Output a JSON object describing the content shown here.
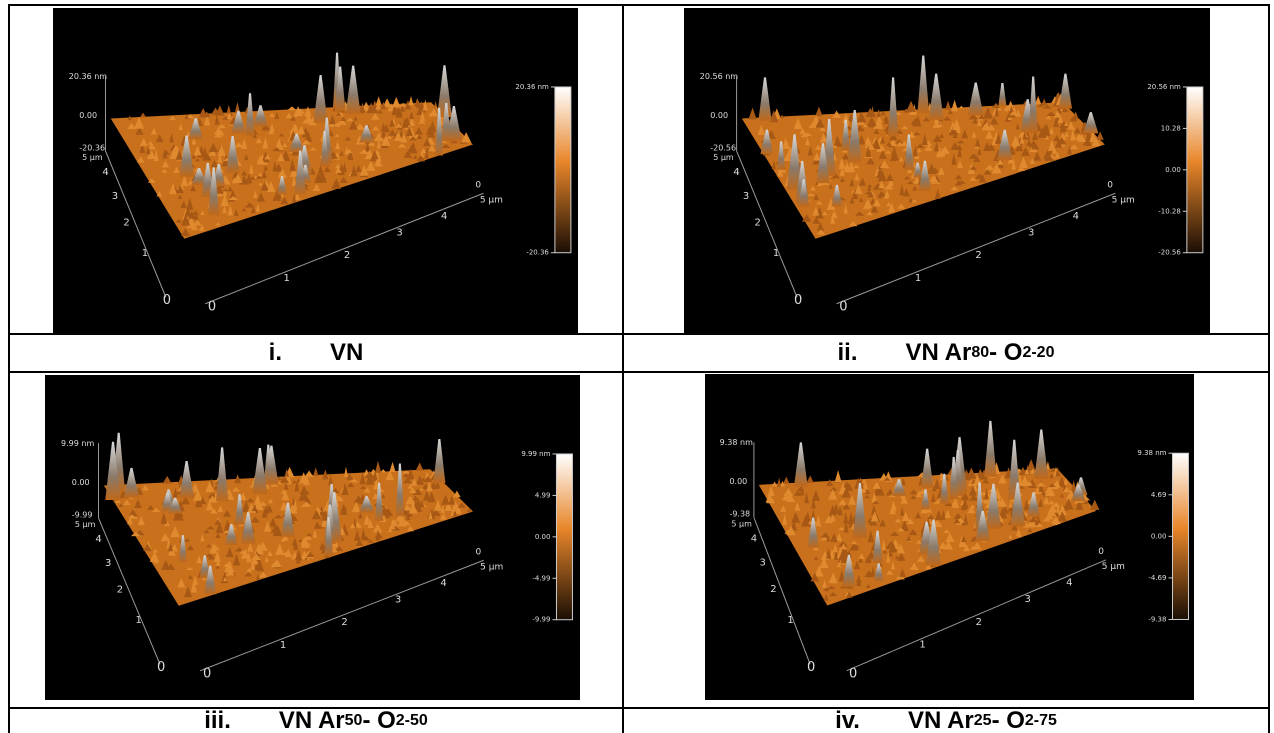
{
  "panels": [
    {
      "image": {
        "z_labels": [
          "20.36 nm",
          "0.00",
          "-20.36"
        ],
        "y_ticks": [
          "5 µm",
          "4",
          "3",
          "2",
          "1",
          "0"
        ],
        "x_ticks": [
          "0",
          "1",
          "2",
          "3",
          "4",
          "5 µm"
        ],
        "corner": "0",
        "colorbar": [
          "20.36 nm",
          "-20.36"
        ]
      },
      "caption": {
        "numeral": "i.",
        "segments": [
          {
            "text": "VN",
            "sub": false
          }
        ]
      }
    },
    {
      "image": {
        "z_labels": [
          "20.56 nm",
          "0.00",
          "-20.56"
        ],
        "y_ticks": [
          "5 µm",
          "4",
          "3",
          "2",
          "1",
          "0"
        ],
        "x_ticks": [
          "0",
          "1",
          "2",
          "3",
          "4",
          "5 µm"
        ],
        "corner": "0",
        "colorbar": [
          "20.56 nm",
          "10.28",
          "0.00",
          "-10.28",
          "-20.56"
        ]
      },
      "caption": {
        "numeral": "ii.",
        "segments": [
          {
            "text": "VN Ar",
            "sub": false
          },
          {
            "text": "80",
            "sub": true
          },
          {
            "text": "- O",
            "sub": false
          },
          {
            "text": "2-20",
            "sub": true
          }
        ]
      }
    },
    {
      "image": {
        "z_labels": [
          "9.99 nm",
          "0.00",
          "-9.99"
        ],
        "y_ticks": [
          "5 µm",
          "4",
          "3",
          "2",
          "1",
          "0"
        ],
        "x_ticks": [
          "0",
          "1",
          "2",
          "3",
          "4",
          "5 µm"
        ],
        "corner": "0",
        "colorbar": [
          "9.99 nm",
          "4.99",
          "0.00",
          "-4.99",
          "-9.99"
        ]
      },
      "caption": {
        "numeral": "iii.",
        "segments": [
          {
            "text": "VN Ar",
            "sub": false
          },
          {
            "text": "50",
            "sub": true
          },
          {
            "text": "- O",
            "sub": false
          },
          {
            "text": "2-50",
            "sub": true
          }
        ]
      }
    },
    {
      "image": {
        "z_labels": [
          "9.38 nm",
          "0.00",
          "-9.38"
        ],
        "y_ticks": [
          "5 µm",
          "4",
          "3",
          "2",
          "1",
          "0"
        ],
        "x_ticks": [
          "0",
          "1",
          "2",
          "3",
          "4",
          "5 µm"
        ],
        "corner": "0",
        "colorbar": [
          "9.38 nm",
          "4.69",
          "0.00",
          "-4.69",
          "-9.38"
        ]
      },
      "caption": {
        "numeral": "iv.",
        "segments": [
          {
            "text": "VN Ar",
            "sub": false
          },
          {
            "text": "25",
            "sub": true
          },
          {
            "text": "- O",
            "sub": false
          },
          {
            "text": "2-75",
            "sub": true
          }
        ]
      }
    }
  ]
}
